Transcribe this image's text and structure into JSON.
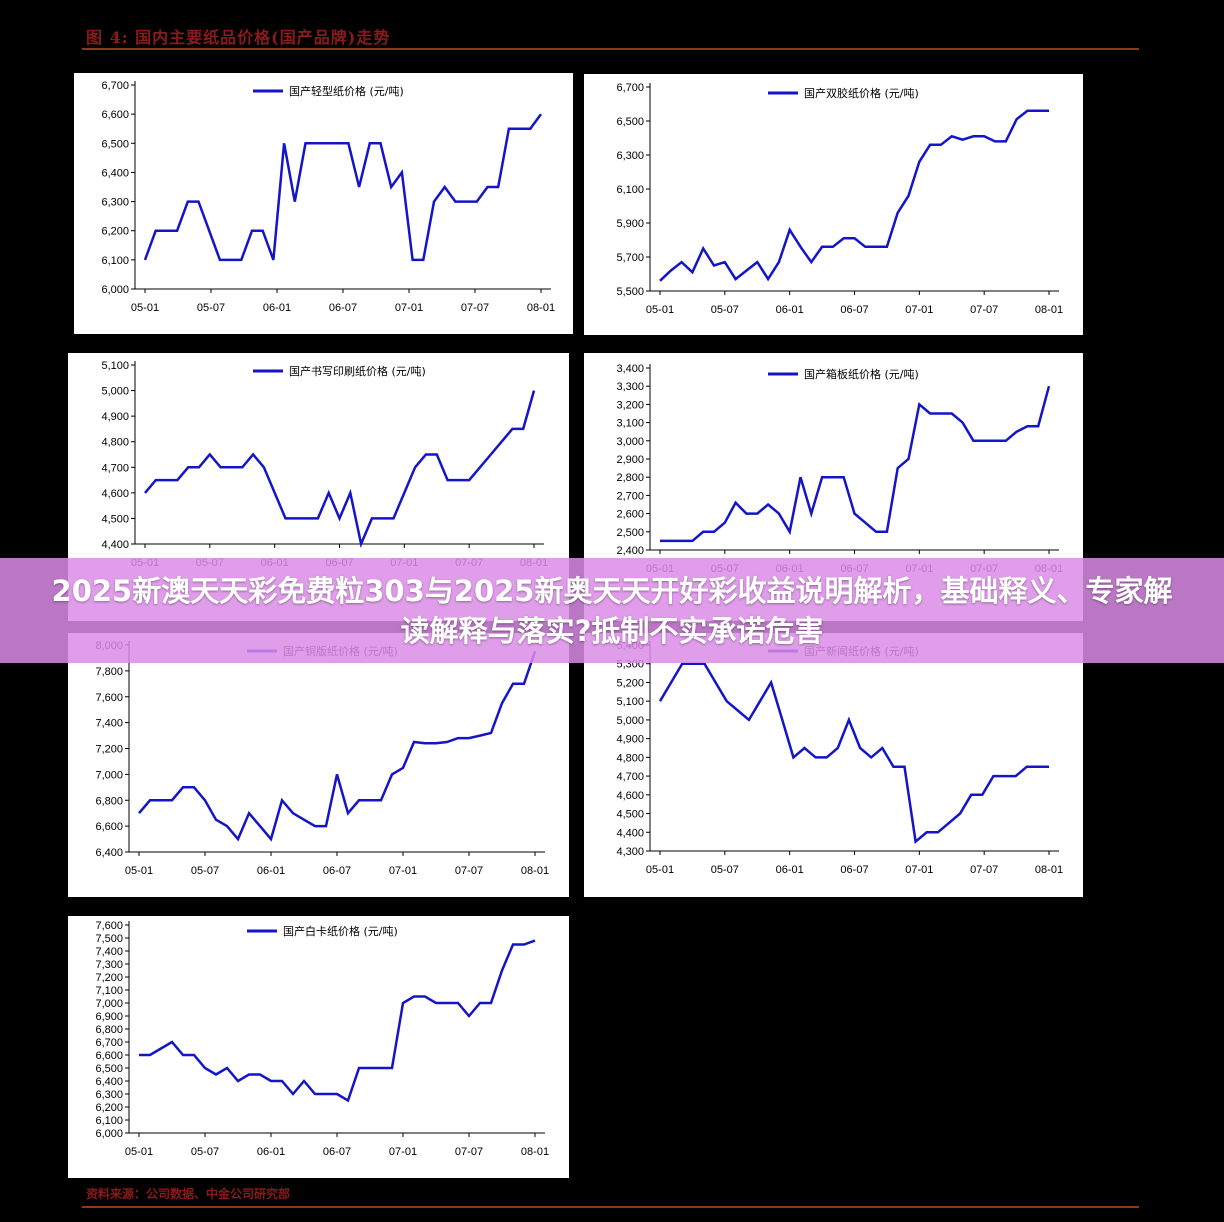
{
  "figure": {
    "title": "图 4: 国内主要纸品价格(国产品牌)走势",
    "source": "资料来源：公司数据、中金公司研究部"
  },
  "overlay": {
    "text": "2025新澳天天彩免费粒303与2025新奥天天开好彩收益说明解析，基础释义、专家解读解释与落实?抵制不实承诺危害"
  },
  "colors": {
    "series": "#1414c8",
    "banner": "#da8ce6"
  },
  "chart_data": [
    {
      "type": "line",
      "legend": "国产轻型纸价格 (元/吨)",
      "x_ticks": [
        "05-01",
        "05-07",
        "06-01",
        "06-07",
        "07-01",
        "07-07",
        "08-01"
      ],
      "ylim": [
        6000,
        6700
      ],
      "y_ticks": [
        "6,000",
        "6,100",
        "6,200",
        "6,300",
        "6,400",
        "6,500",
        "6,600",
        "6,700"
      ],
      "values": [
        6100,
        6200,
        6200,
        6200,
        6300,
        6300,
        6200,
        6100,
        6100,
        6100,
        6200,
        6200,
        6100,
        6500,
        6300,
        6500,
        6500,
        6500,
        6500,
        6500,
        6350,
        6500,
        6500,
        6350,
        6400,
        6100,
        6100,
        6300,
        6350,
        6300,
        6300,
        6300,
        6350,
        6350,
        6550,
        6550,
        6550,
        6600
      ]
    },
    {
      "type": "line",
      "legend": "国产双胶纸价格 (元/吨)",
      "x_ticks": [
        "05-01",
        "05-07",
        "06-01",
        "06-07",
        "07-01",
        "07-07",
        "08-01"
      ],
      "ylim": [
        5500,
        6700
      ],
      "y_ticks": [
        "5,500",
        "5,700",
        "5,900",
        "6,100",
        "6,300",
        "6,500",
        "6,700"
      ],
      "values": [
        5560,
        5620,
        5670,
        5610,
        5750,
        5650,
        5670,
        5570,
        5620,
        5670,
        5570,
        5670,
        5860,
        5760,
        5670,
        5760,
        5760,
        5810,
        5810,
        5760,
        5760,
        5760,
        5960,
        6060,
        6260,
        6360,
        6360,
        6410,
        6390,
        6410,
        6410,
        6380,
        6380,
        6510,
        6560,
        6560,
        6560
      ]
    },
    {
      "type": "line",
      "legend": "国产书写印刷纸价格 (元/吨)",
      "x_ticks": [
        "05-01",
        "05-07",
        "06-01",
        "06-07",
        "07-01",
        "07-07",
        "08-01"
      ],
      "ylim": [
        4400,
        5100
      ],
      "y_ticks": [
        "4,400",
        "4,500",
        "4,600",
        "4,700",
        "4,800",
        "4,900",
        "5,000",
        "5,100"
      ],
      "values": [
        4600,
        4650,
        4650,
        4650,
        4700,
        4700,
        4750,
        4700,
        4700,
        4700,
        4750,
        4700,
        4600,
        4500,
        4500,
        4500,
        4500,
        4600,
        4500,
        4600,
        4400,
        4500,
        4500,
        4500,
        4600,
        4700,
        4750,
        4750,
        4650,
        4650,
        4650,
        4700,
        4750,
        4800,
        4850,
        4850,
        5000
      ]
    },
    {
      "type": "line",
      "legend": "国产箱板纸价格 (元/吨)",
      "x_ticks": [
        "05-01",
        "05-07",
        "06-01",
        "06-07",
        "07-01",
        "07-07",
        "08-01"
      ],
      "ylim": [
        2400,
        3400
      ],
      "y_ticks": [
        "2,400",
        "2,500",
        "2,600",
        "2,700",
        "2,800",
        "2,900",
        "3,000",
        "3,100",
        "3,200",
        "3,300",
        "3,400"
      ],
      "values": [
        2450,
        2450,
        2450,
        2450,
        2500,
        2500,
        2550,
        2660,
        2600,
        2600,
        2650,
        2600,
        2500,
        2800,
        2600,
        2800,
        2800,
        2800,
        2600,
        2550,
        2500,
        2500,
        2850,
        2900,
        3200,
        3150,
        3150,
        3150,
        3100,
        3000,
        3000,
        3000,
        3000,
        3050,
        3080,
        3080,
        3300
      ]
    },
    {
      "type": "line",
      "legend": "国产铜版纸价格 (元/吨)",
      "x_ticks": [
        "05-01",
        "05-07",
        "06-01",
        "06-07",
        "07-01",
        "07-07",
        "08-01"
      ],
      "ylim": [
        6400,
        8000
      ],
      "y_ticks": [
        "6,400",
        "6,600",
        "6,800",
        "7,000",
        "7,200",
        "7,400",
        "7,600",
        "7,800",
        "8,000"
      ],
      "values": [
        6700,
        6800,
        6800,
        6800,
        6900,
        6900,
        6800,
        6650,
        6600,
        6500,
        6700,
        6600,
        6500,
        6800,
        6700,
        6650,
        6600,
        6600,
        7000,
        6700,
        6800,
        6800,
        6800,
        7000,
        7050,
        7250,
        7240,
        7240,
        7250,
        7280,
        7280,
        7300,
        7320,
        7550,
        7700,
        7700,
        7950
      ]
    },
    {
      "type": "line",
      "legend": "国产新闻纸价格 (元/吨)",
      "x_ticks": [
        "05-01",
        "05-07",
        "06-01",
        "06-07",
        "07-01",
        "07-07",
        "08-01"
      ],
      "ylim": [
        4300,
        5400
      ],
      "y_ticks": [
        "4,300",
        "4,400",
        "4,500",
        "4,600",
        "4,700",
        "4,800",
        "4,900",
        "5,000",
        "5,100",
        "5,200",
        "5,300",
        "5,400"
      ],
      "values": [
        5100,
        5200,
        5300,
        5300,
        5300,
        5200,
        5100,
        5050,
        5000,
        5100,
        5200,
        5000,
        4800,
        4850,
        4800,
        4800,
        4850,
        5000,
        4850,
        4800,
        4850,
        4750,
        4750,
        4350,
        4400,
        4400,
        4450,
        4500,
        4600,
        4600,
        4700,
        4700,
        4700,
        4750,
        4750,
        4750
      ]
    },
    {
      "type": "line",
      "legend": "国产白卡纸价格 (元/吨)",
      "x_ticks": [
        "05-01",
        "05-07",
        "06-01",
        "06-07",
        "07-01",
        "07-07",
        "08-01"
      ],
      "ylim": [
        6000,
        7600
      ],
      "y_ticks": [
        "6,000",
        "6,100",
        "6,200",
        "6,300",
        "6,400",
        "6,500",
        "6,600",
        "6,700",
        "6,800",
        "6,900",
        "7,000",
        "7,100",
        "7,200",
        "7,300",
        "7,400",
        "7,500",
        "7,600"
      ],
      "values": [
        6600,
        6600,
        6650,
        6700,
        6600,
        6600,
        6500,
        6450,
        6500,
        6400,
        6450,
        6450,
        6400,
        6400,
        6300,
        6400,
        6300,
        6300,
        6300,
        6250,
        6500,
        6500,
        6500,
        6500,
        7000,
        7050,
        7050,
        7000,
        7000,
        7000,
        6900,
        7000,
        7000,
        7250,
        7450,
        7450,
        7480
      ]
    }
  ]
}
